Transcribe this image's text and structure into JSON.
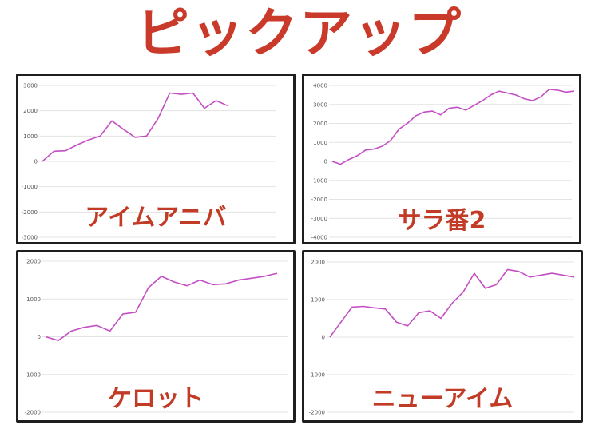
{
  "page": {
    "title": "ピックアップ",
    "title_color": "#c93a2a",
    "label_color": "#c23b26",
    "line_color": "#c44ec4",
    "grid_color": "#e3e3e3"
  },
  "chart_data": [
    {
      "type": "line",
      "label": "アイムアニバ",
      "ylim": [
        -3000,
        3000
      ],
      "y_ticks": [
        "3000",
        "2000",
        "1000",
        "0",
        "-1000",
        "-2000",
        "-3000"
      ],
      "y_tick_values": [
        3000,
        2000,
        1000,
        0,
        -1000,
        -2000,
        -3000
      ],
      "series": [
        {
          "x": [
            0,
            1,
            2,
            3,
            4,
            5,
            6,
            7,
            8,
            9,
            10,
            11,
            12,
            13,
            14,
            15,
            16
          ],
          "values": [
            0,
            400,
            420,
            650,
            850,
            1000,
            1600,
            1270,
            950,
            1000,
            1700,
            2700,
            2650,
            2700,
            2100,
            2400,
            2200
          ]
        }
      ]
    },
    {
      "type": "line",
      "label": "サラ番2",
      "ylim": [
        -4000,
        4000
      ],
      "y_ticks": [
        "4000",
        "3000",
        "2000",
        "1000",
        "0",
        "-1000",
        "-2000",
        "-3000",
        "-4000"
      ],
      "y_tick_values": [
        4000,
        3000,
        2000,
        1000,
        0,
        -1000,
        -2000,
        -3000,
        -4000
      ],
      "series": [
        {
          "x": [
            0,
            1,
            2,
            3,
            4,
            5,
            6,
            7,
            8,
            9,
            10,
            11,
            12,
            13,
            14,
            15,
            16,
            17,
            18,
            19,
            20,
            21,
            22,
            23,
            24,
            25,
            26,
            27,
            28,
            29
          ],
          "values": [
            0,
            -150,
            100,
            300,
            600,
            650,
            800,
            1100,
            1700,
            2000,
            2400,
            2600,
            2650,
            2450,
            2800,
            2850,
            2700,
            2950,
            3200,
            3500,
            3700,
            3600,
            3500,
            3300,
            3200,
            3400,
            3800,
            3750,
            3650,
            3700
          ]
        }
      ]
    },
    {
      "type": "line",
      "label": "ケロット",
      "ylim": [
        -2000,
        2000
      ],
      "y_ticks": [
        "2000",
        "1000",
        "0",
        "-1000",
        "-2000"
      ],
      "y_tick_values": [
        2000,
        1000,
        0,
        -1000,
        -2000
      ],
      "series": [
        {
          "x": [
            0,
            1,
            2,
            3,
            4,
            5,
            6,
            7,
            8,
            9,
            10,
            11,
            12,
            13,
            14,
            15,
            16,
            17,
            18
          ],
          "values": [
            0,
            -100,
            150,
            250,
            300,
            150,
            600,
            650,
            1300,
            1600,
            1450,
            1350,
            1500,
            1380,
            1400,
            1500,
            1550,
            1600,
            1680
          ]
        }
      ]
    },
    {
      "type": "line",
      "label": "ニューアイム",
      "ylim": [
        -2000,
        2000
      ],
      "y_ticks": [
        "2000",
        "1000",
        "0",
        "-1000",
        "-2000"
      ],
      "y_tick_values": [
        2000,
        1000,
        0,
        -1000,
        -2000
      ],
      "series": [
        {
          "x": [
            0,
            1,
            2,
            3,
            4,
            5,
            6,
            7,
            8,
            9,
            10,
            11,
            12,
            13,
            14,
            15,
            16,
            17,
            18,
            19,
            20,
            21,
            22
          ],
          "values": [
            0,
            400,
            800,
            820,
            780,
            750,
            400,
            300,
            650,
            700,
            500,
            900,
            1200,
            1700,
            1300,
            1400,
            1800,
            1750,
            1600,
            1650,
            1700,
            1650,
            1600
          ]
        }
      ]
    }
  ]
}
